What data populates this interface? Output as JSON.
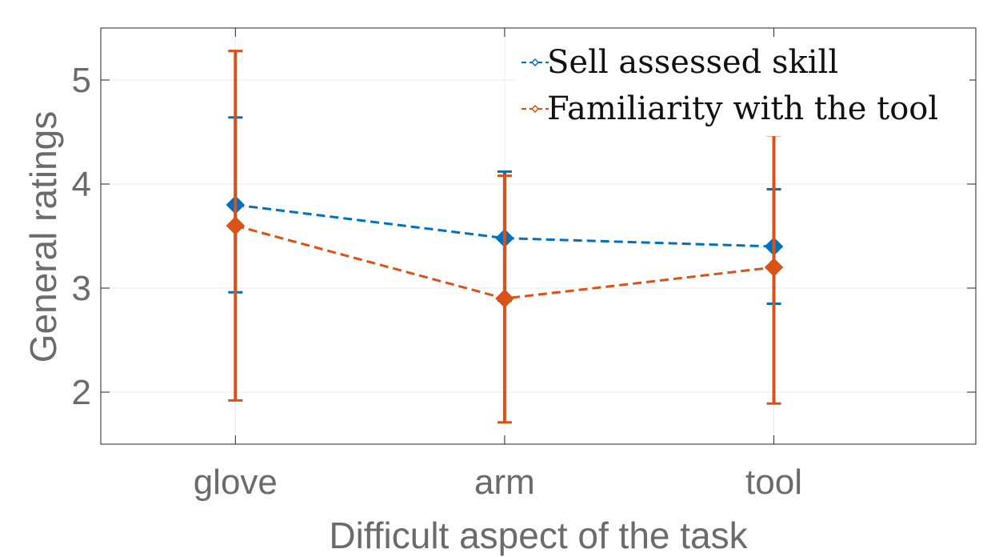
{
  "chart_data": {
    "type": "line",
    "xlabel": "Difficult aspect of the task",
    "ylabel": "General ratings",
    "categories": [
      "glove",
      "arm",
      "tool"
    ],
    "xlim": [
      0.5,
      3.75
    ],
    "ylim": [
      1.5,
      5.5
    ],
    "yticks": [
      2,
      3,
      4,
      5
    ],
    "grid": true,
    "legend_position": "top-right",
    "series": [
      {
        "name": "Sell assessed skill",
        "color": "#0072BD",
        "values": [
          3.8,
          3.48,
          3.4
        ],
        "err_low": [
          2.96,
          2.88,
          2.85
        ],
        "err_high": [
          4.64,
          4.12,
          3.95
        ]
      },
      {
        "name": "Familiarity with the tool",
        "color": "#D95319",
        "values": [
          3.6,
          2.9,
          3.2
        ],
        "err_low": [
          1.92,
          1.71,
          1.89
        ],
        "err_high": [
          5.28,
          4.08,
          4.47
        ]
      }
    ]
  }
}
